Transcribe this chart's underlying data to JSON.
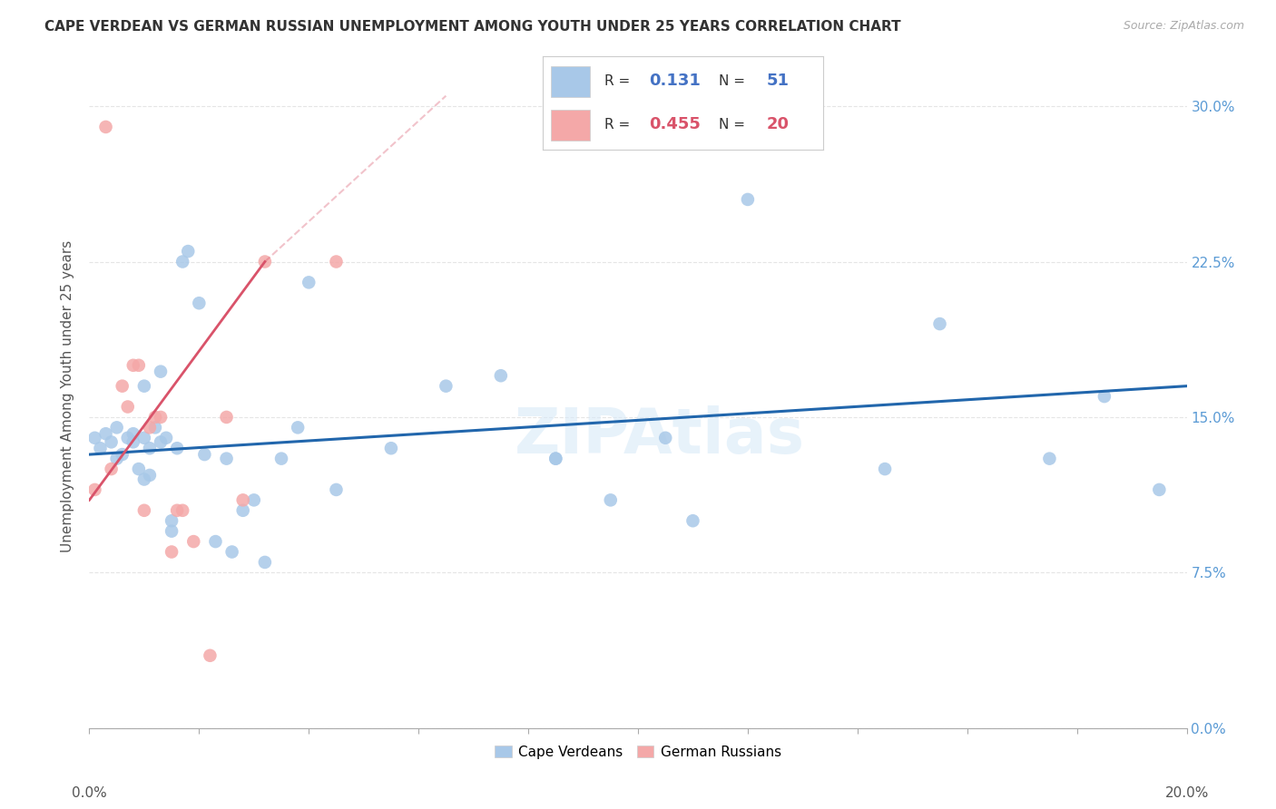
{
  "title": "CAPE VERDEAN VS GERMAN RUSSIAN UNEMPLOYMENT AMONG YOUTH UNDER 25 YEARS CORRELATION CHART",
  "source": "Source: ZipAtlas.com",
  "ylabel": "Unemployment Among Youth under 25 years",
  "xlim": [
    0.0,
    20.0
  ],
  "ylim": [
    0.0,
    32.0
  ],
  "ylabel_vals": [
    0.0,
    7.5,
    15.0,
    22.5,
    30.0
  ],
  "blue_color": "#a8c8e8",
  "pink_color": "#f4a8a8",
  "blue_line_color": "#2166ac",
  "pink_line_color": "#d9536a",
  "watermark": "ZIPAtlas",
  "r1_val": "0.131",
  "n1_val": "51",
  "r2_val": "0.455",
  "n2_val": "20",
  "r_color_blue": "#4472c4",
  "r_color_pink": "#d9536a",
  "cape_verdean_x": [
    0.1,
    0.2,
    0.3,
    0.4,
    0.5,
    0.5,
    0.6,
    0.7,
    0.8,
    0.8,
    0.9,
    1.0,
    1.0,
    1.0,
    1.1,
    1.1,
    1.2,
    1.3,
    1.3,
    1.4,
    1.5,
    1.5,
    1.6,
    1.7,
    1.8,
    2.0,
    2.1,
    2.3,
    2.5,
    2.6,
    2.8,
    3.0,
    3.2,
    3.5,
    3.8,
    4.0,
    4.5,
    5.5,
    6.5,
    7.5,
    8.5,
    8.5,
    9.5,
    10.5,
    11.0,
    12.0,
    14.5,
    15.5,
    17.5,
    18.5,
    19.5
  ],
  "cape_verdean_y": [
    14.0,
    13.5,
    14.2,
    13.8,
    14.5,
    13.0,
    13.2,
    14.0,
    14.2,
    13.8,
    12.5,
    14.0,
    12.0,
    16.5,
    12.2,
    13.5,
    14.5,
    13.8,
    17.2,
    14.0,
    10.0,
    9.5,
    13.5,
    22.5,
    23.0,
    20.5,
    13.2,
    9.0,
    13.0,
    8.5,
    10.5,
    11.0,
    8.0,
    13.0,
    14.5,
    21.5,
    11.5,
    13.5,
    16.5,
    17.0,
    13.0,
    13.0,
    11.0,
    14.0,
    10.0,
    25.5,
    12.5,
    19.5,
    13.0,
    16.0,
    11.5
  ],
  "german_russian_x": [
    0.1,
    0.3,
    0.4,
    0.6,
    0.7,
    0.8,
    0.9,
    1.0,
    1.1,
    1.2,
    1.3,
    1.5,
    1.6,
    1.7,
    1.9,
    2.2,
    2.5,
    2.8,
    3.2,
    4.5
  ],
  "german_russian_y": [
    11.5,
    29.0,
    12.5,
    16.5,
    15.5,
    17.5,
    17.5,
    10.5,
    14.5,
    15.0,
    15.0,
    8.5,
    10.5,
    10.5,
    9.0,
    3.5,
    15.0,
    11.0,
    22.5,
    22.5
  ],
  "blue_trend_x0": 0.0,
  "blue_trend_x1": 20.0,
  "blue_trend_y0": 13.2,
  "blue_trend_y1": 16.5,
  "pink_trend_x0": 0.0,
  "pink_trend_x1": 3.2,
  "pink_trend_y0": 11.0,
  "pink_trend_y1": 22.5,
  "pink_dash_x0": 3.2,
  "pink_dash_x1": 6.5,
  "pink_dash_y0": 22.5,
  "pink_dash_y1": 30.5
}
